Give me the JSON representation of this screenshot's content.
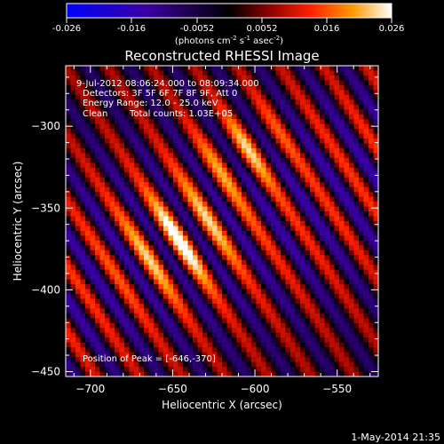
{
  "chart_data": {
    "type": "heatmap",
    "title": "Reconstructed RHESSI Image",
    "xlabel": "Heliocentric X (arcsec)",
    "ylabel": "Heliocentric Y (arcsec)",
    "xlim": [
      -715,
      -525
    ],
    "ylim": [
      -453,
      -263
    ],
    "xticks": [
      -700,
      -650,
      -600,
      -550
    ],
    "yticks": [
      -300,
      -350,
      -400,
      -450
    ],
    "colorbar": {
      "range": [
        -0.026,
        0.026
      ],
      "ticks": [
        "-0.026",
        "-0.016",
        "-0.0052",
        "0.0052",
        "0.016",
        "0.026"
      ],
      "unit_text": "(photons cm",
      "unit_sup1": "-2",
      "unit_mid": " s",
      "unit_sup2": "-1",
      "unit_end": " asec",
      "unit_sup3": "-2",
      "unit_close": ")"
    },
    "annotations": {
      "time_range": "9-Jul-2012 08:06:24.000 to 08:09:34.000",
      "detectors": "Detectors: 3F 5F 6F 7F 8F 9F, Att 0",
      "energy": "Energy Range: 12.0 - 25.0 keV",
      "algorithm": "Clean",
      "counts": "Total counts: 1.03E+05",
      "peak": "Position of Peak = [-646,-370]"
    },
    "peak": {
      "x": -646,
      "y": -370
    },
    "secondary_source": {
      "x": -608,
      "y": -315
    }
  },
  "footer": {
    "timestamp": "1-May-2014 21:35"
  }
}
